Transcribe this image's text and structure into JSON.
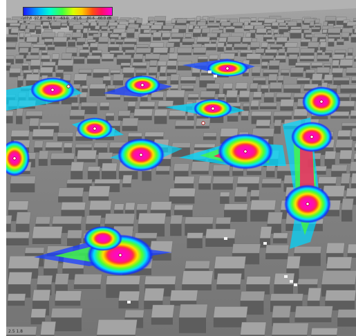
{
  "legend": {
    "ticks": [
      "-107.8",
      "-97.8",
      "-84.8",
      "-63.0",
      "-81.6",
      "-80.6",
      "-60.0 dB"
    ],
    "colors": [
      "#1a1aff",
      "#00b4ff",
      "#00ffd0",
      "#40ff40",
      "#d8ff00",
      "#ffcc00",
      "#ff5010",
      "#ff1060",
      "#ff00e0"
    ]
  },
  "status": {
    "coords": "2.5 1.8"
  },
  "colors": {
    "background": "#ffffff",
    "terrain": "#7e7e7e",
    "building_top": "#9a9a9a",
    "building_side": "#5d5d5d"
  },
  "transmitters": {
    "count": 14
  }
}
